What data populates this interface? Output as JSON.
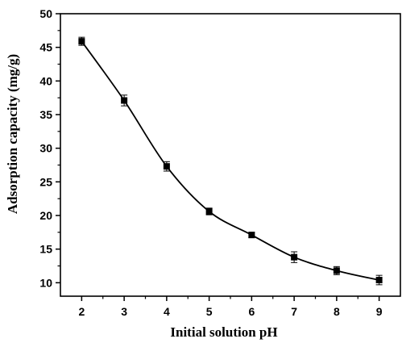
{
  "chart_data": {
    "type": "line",
    "xlabel": "Initial solution pH",
    "ylabel": "Adsorption capacity (mg/g)",
    "xlim": [
      1.5,
      9.5
    ],
    "ylim": [
      8,
      50
    ],
    "xticks": [
      2,
      3,
      4,
      5,
      6,
      7,
      8,
      9
    ],
    "yticks": [
      10,
      15,
      20,
      25,
      30,
      35,
      40,
      45,
      50
    ],
    "series": [
      {
        "marker": "square",
        "color": "#000000",
        "x": [
          2,
          3,
          4,
          5,
          6,
          7,
          8,
          9
        ],
        "y": [
          45.9,
          37.1,
          27.3,
          20.6,
          17.1,
          13.8,
          11.8,
          10.4
        ],
        "error": [
          0.6,
          0.8,
          0.7,
          0.5,
          0.4,
          0.8,
          0.6,
          0.7
        ]
      }
    ],
    "grid": false,
    "legend": "none"
  }
}
